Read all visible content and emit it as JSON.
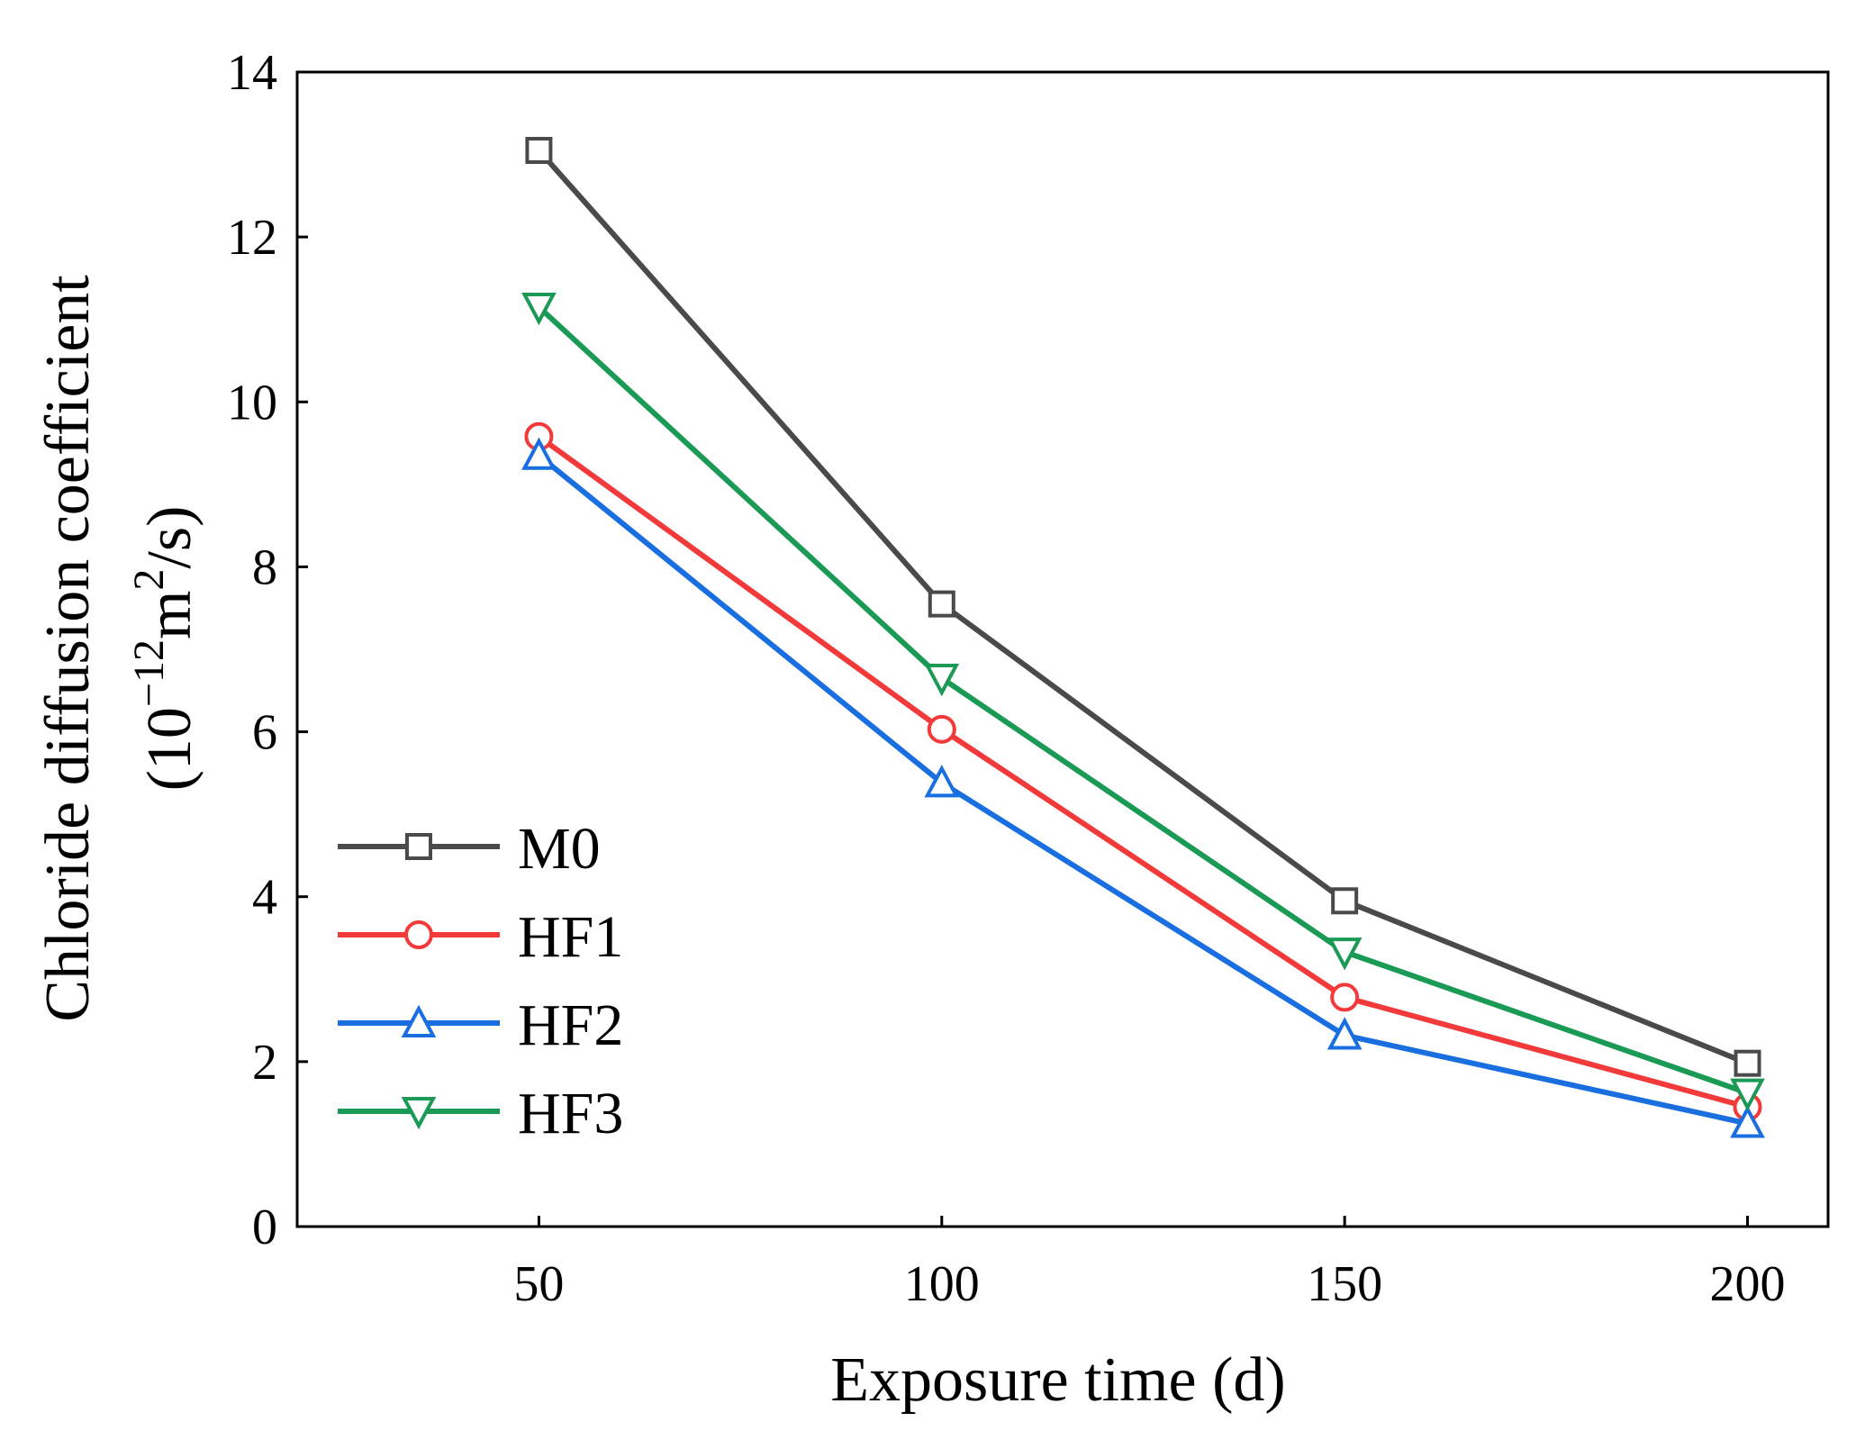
{
  "chart_data": {
    "type": "line",
    "title": "",
    "xlabel": "Exposure time (d)",
    "ylabel_line1": "Chloride diffusion coefficient",
    "ylabel_line2": {
      "prefix": "(10",
      "exp1": "−12",
      "mid": "m",
      "exp2": "2",
      "suffix": "/s)"
    },
    "x": [
      50,
      100,
      150,
      200
    ],
    "xlim": [
      20,
      210
    ],
    "ylim": [
      0,
      14
    ],
    "xticks": [
      50,
      100,
      150,
      200
    ],
    "yticks": [
      0,
      2,
      4,
      6,
      8,
      10,
      12,
      14
    ],
    "legend_position": "lower-left",
    "series": [
      {
        "name": "M0",
        "marker": "square",
        "color": "#4a4a4a",
        "values": [
          13.05,
          7.55,
          3.95,
          1.98
        ]
      },
      {
        "name": "HF1",
        "marker": "circle",
        "color": "#f23a3a",
        "values": [
          9.58,
          6.03,
          2.78,
          1.45
        ]
      },
      {
        "name": "HF2",
        "marker": "triangle-up",
        "color": "#1a6fe0",
        "values": [
          9.35,
          5.38,
          2.32,
          1.25
        ]
      },
      {
        "name": "HF3",
        "marker": "triangle-down",
        "color": "#1a9a55",
        "values": [
          11.15,
          6.65,
          3.33,
          1.62
        ]
      }
    ]
  }
}
